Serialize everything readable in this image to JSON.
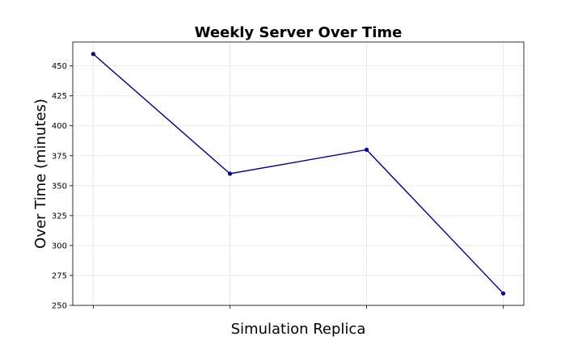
{
  "chart_data": {
    "type": "line",
    "title": "Weekly Server Over Time",
    "xlabel": "Simulation Replica",
    "ylabel": "Over Time (minutes)",
    "x": [
      1,
      2,
      3,
      4
    ],
    "series": [
      {
        "values": [
          460,
          360,
          380,
          260
        ],
        "color": "#000080"
      }
    ],
    "xlim": [
      0.85,
      4.15
    ],
    "ylim": [
      250,
      470
    ],
    "yticks": [
      250,
      275,
      300,
      325,
      350,
      375,
      400,
      425,
      450
    ],
    "grid": true,
    "marker": "circle"
  }
}
